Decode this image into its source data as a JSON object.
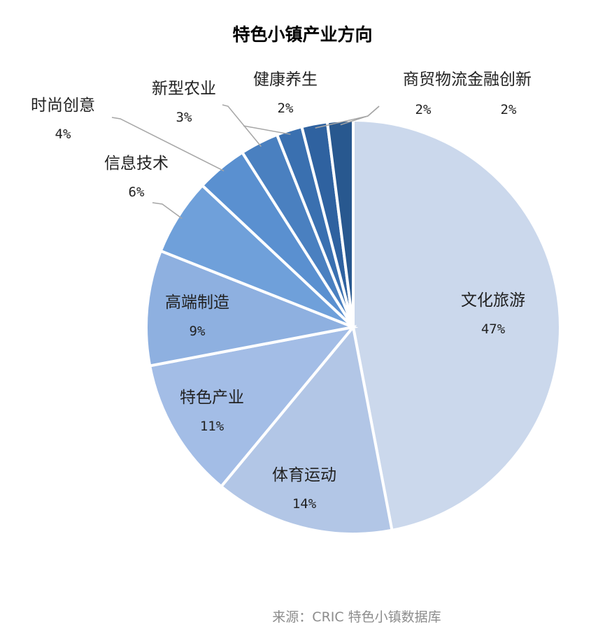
{
  "title": "特色小镇产业方向",
  "source": "来源：CRIC 特色小镇数据库",
  "colors": {
    "slices": [
      "#cbd8ec",
      "#b2c6e6",
      "#a3bde6",
      "#8eb0e0",
      "#6fa0da",
      "#5a90d0",
      "#4a80c0",
      "#3a70b0",
      "#2f62a0",
      "#28588f"
    ],
    "leader_line": "#a6a6a6",
    "slice_border": "#ffffff"
  },
  "chart_data": {
    "type": "pie",
    "title": "特色小镇产业方向",
    "start": "12 o'clock, clockwise",
    "slices": [
      {
        "label": "文化旅游",
        "value": 47,
        "value_label": "47%"
      },
      {
        "label": "体育运动",
        "value": 14,
        "value_label": "14%"
      },
      {
        "label": "特色产业",
        "value": 11,
        "value_label": "11%"
      },
      {
        "label": "高端制造",
        "value": 9,
        "value_label": "9%"
      },
      {
        "label": "信息技术",
        "value": 6,
        "value_label": "6%"
      },
      {
        "label": "时尚创意",
        "value": 4,
        "value_label": "4%"
      },
      {
        "label": "新型农业",
        "value": 3,
        "value_label": "3%"
      },
      {
        "label": "健康养生",
        "value": 2,
        "value_label": "2%"
      },
      {
        "label": "商贸物流",
        "value": 2,
        "value_label": "2%"
      },
      {
        "label": "金融创新",
        "value": 2,
        "value_label": "2%"
      }
    ]
  }
}
